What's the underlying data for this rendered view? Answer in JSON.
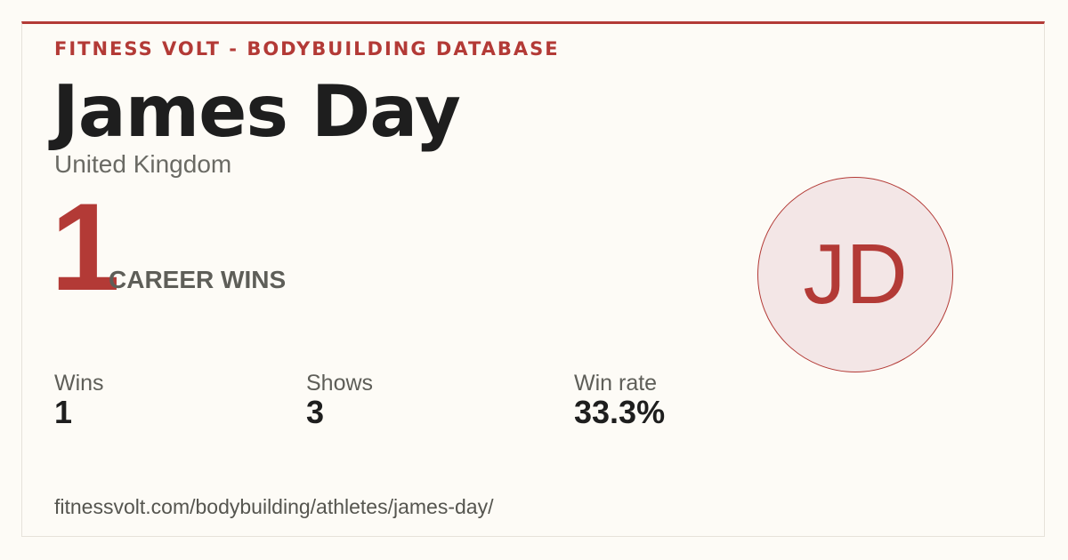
{
  "header": {
    "brand": "FITNESS VOLT - BODYBUILDING DATABASE",
    "name": "James Day",
    "country": "United Kingdom"
  },
  "hero": {
    "number": "1",
    "label": "CAREER WINS"
  },
  "avatar": {
    "initials": "JD"
  },
  "stats": [
    {
      "label": "Wins",
      "value": "1"
    },
    {
      "label": "Shows",
      "value": "3"
    },
    {
      "label": "Win rate",
      "value": "33.3%"
    }
  ],
  "footer": {
    "url": "fitnessvolt.com/bodybuilding/athletes/james-day/"
  }
}
